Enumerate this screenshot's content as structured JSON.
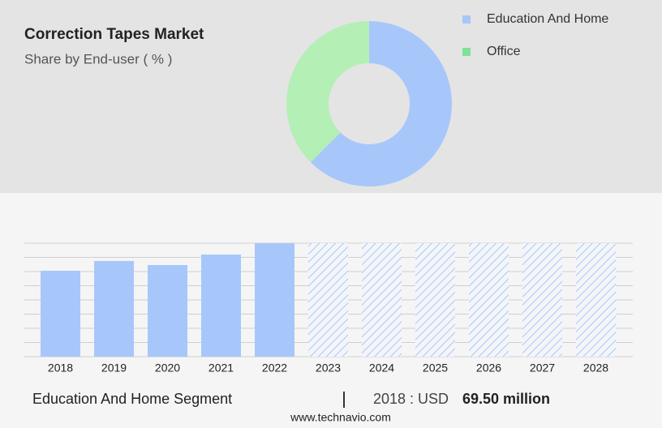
{
  "chart_data": [
    {
      "type": "pie",
      "title": "Correction Tapes Market",
      "subtitle": "Share by End-user ( % )",
      "categories": [
        "Education And Home",
        "Office"
      ],
      "values": [
        62.5,
        37.5
      ],
      "colors": [
        "#a7c7fb",
        "#b4efb6"
      ],
      "legend_colors": [
        "#a7c7fb",
        "#7ee398"
      ],
      "donut": true
    },
    {
      "type": "bar",
      "categories": [
        "2018",
        "2019",
        "2020",
        "2021",
        "2022",
        "2023",
        "2024",
        "2025",
        "2026",
        "2027",
        "2028"
      ],
      "values": [
        69.5,
        77.4,
        74.1,
        82.6,
        91.8,
        null,
        null,
        null,
        null,
        null,
        null
      ],
      "color": "#a7c7fb",
      "ylim": [
        0,
        91.8
      ],
      "grid": true
    }
  ],
  "footer": {
    "segment": "Education And Home Segment",
    "year_label": "2018 : USD",
    "value": "69.50 million",
    "source": "www.technavio.com"
  }
}
